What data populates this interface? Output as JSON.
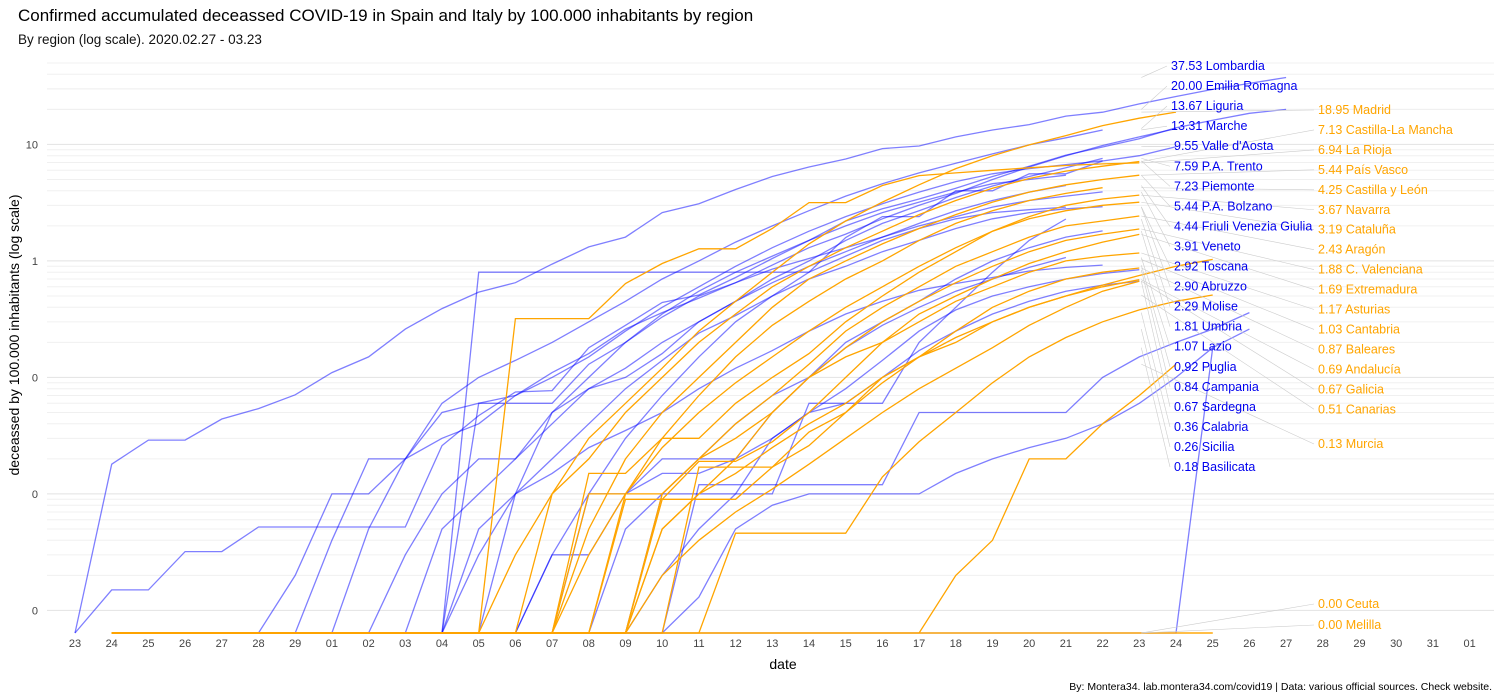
{
  "chart_data": {
    "type": "line",
    "title": "Confirmed accumulated deceassed COVID-19 in Spain and Italy by 100.000 inhabitants by region",
    "subtitle": "By region (log scale). 2020.02.27 - 03.23",
    "xlabel": "date",
    "ylabel": "deceassed by 100.000 inhabitants (log scale)",
    "caption": "By: Montera34. lab.montera34.com/covid19 | Data: various official sources. Check website.",
    "y_scale": "log",
    "ylim": [
      0.00064,
      50
    ],
    "y_ticks": [
      {
        "value": 0.001,
        "label": "0"
      },
      {
        "value": 0.01,
        "label": "0"
      },
      {
        "value": 0.1,
        "label": "0"
      },
      {
        "value": 1,
        "label": "1"
      },
      {
        "value": 10,
        "label": "10"
      }
    ],
    "x_ticks": [
      "23",
      "24",
      "25",
      "26",
      "27",
      "28",
      "29",
      "01",
      "02",
      "03",
      "04",
      "05",
      "06",
      "07",
      "08",
      "09",
      "10",
      "11",
      "12",
      "13",
      "14",
      "15",
      "16",
      "17",
      "18",
      "19",
      "20",
      "21",
      "22",
      "23",
      "24",
      "25",
      "26",
      "27",
      "28",
      "29",
      "30",
      "31",
      "01"
    ],
    "grid": true,
    "legend": "none",
    "colors": {
      "italy": "#0000ff",
      "spain": "#ffa500"
    },
    "series": [
      {
        "name": "Lombardia",
        "country": "italy",
        "label": "37.53 Lombardia",
        "start": 1,
        "values": [
          0.018,
          0.029,
          0.029,
          0.044,
          0.054,
          0.071,
          0.11,
          0.15,
          0.26,
          0.39,
          0.54,
          0.65,
          0.94,
          1.32,
          1.6,
          2.6,
          3.1,
          4.1,
          5.3,
          6.4,
          7.5,
          9.2,
          9.7,
          11.6,
          13.3,
          14.8,
          17.5,
          18.9,
          22.3,
          25.8,
          29.7,
          33.4,
          37.53
        ]
      },
      {
        "name": "Emilia Romagna",
        "country": "italy",
        "label": "20.00 Emilia Romagna",
        "start": 1,
        "values": [
          0.0015,
          0.0015,
          0.0032,
          0.0032,
          0.0052,
          0.0052,
          0.0052,
          0.0052,
          0.0052,
          0.026,
          0.047,
          0.075,
          0.077,
          0.18,
          0.28,
          0.44,
          0.51,
          0.72,
          1.05,
          1.5,
          2.2,
          2.8,
          3.4,
          4.2,
          5.3,
          6.5,
          8.1,
          9.5,
          11.2,
          13.9,
          16.1,
          18.5,
          20.0
        ]
      },
      {
        "name": "Liguria",
        "country": "italy",
        "label": "13.67 Liguria",
        "series_index": 2
      },
      {
        "name": "Marche",
        "country": "italy",
        "label": "13.31 Marche",
        "series_index": 3
      },
      {
        "name": "Valle d'Aosta",
        "country": "italy",
        "label": "9.55 Valle d'Aosta",
        "series_index": 4
      },
      {
        "name": "P.A. Trento",
        "country": "italy",
        "label": "7.59 P.A. Trento",
        "series_index": 5
      },
      {
        "name": "Piemonte",
        "country": "italy",
        "label": "7.23 Piemonte",
        "series_index": 6
      },
      {
        "name": "P.A. Bolzano",
        "country": "italy",
        "label": "5.44 P.A. Bolzano",
        "series_index": 7
      },
      {
        "name": "Friuli Venezia Giulia",
        "country": "italy",
        "label": "4.44 Friuli Venezia Giulia",
        "series_index": 8
      },
      {
        "name": "Veneto",
        "country": "italy",
        "label": "3.91 Veneto",
        "series_index": 9
      },
      {
        "name": "Toscana",
        "country": "italy",
        "label": "2.92 Toscana",
        "series_index": 10
      },
      {
        "name": "Abruzzo",
        "country": "italy",
        "label": "2.90 Abruzzo",
        "series_index": 11
      },
      {
        "name": "Molise",
        "country": "italy",
        "label": "2.29 Molise",
        "series_index": 12
      },
      {
        "name": "Umbria",
        "country": "italy",
        "label": "1.81 Umbria",
        "series_index": 13
      },
      {
        "name": "Lazio",
        "country": "italy",
        "label": "1.07 Lazio",
        "series_index": 14
      },
      {
        "name": "Puglia",
        "country": "italy",
        "label": "0.92 Puglia",
        "series_index": 15
      },
      {
        "name": "Campania",
        "country": "italy",
        "label": "0.84 Campania",
        "series_index": 16
      },
      {
        "name": "Sardegna",
        "country": "italy",
        "label": "0.67 Sardegna",
        "series_index": 17
      },
      {
        "name": "Calabria",
        "country": "italy",
        "label": "0.36 Calabria",
        "series_index": 18
      },
      {
        "name": "Sicilia",
        "country": "italy",
        "label": "0.26 Sicilia",
        "series_index": 19
      },
      {
        "name": "Basilicata",
        "country": "italy",
        "label": "0.18 Basilicata",
        "series_index": 20
      },
      {
        "name": "Madrid",
        "country": "spain",
        "label": "18.95 Madrid",
        "series_index": 21
      },
      {
        "name": "Castilla-La Mancha",
        "country": "spain",
        "label": "7.13 Castilla-La Mancha",
        "series_index": 22
      },
      {
        "name": "La Rioja",
        "country": "spain",
        "label": "6.94 La Rioja",
        "series_index": 23
      },
      {
        "name": "País Vasco",
        "country": "spain",
        "label": "5.44 País Vasco",
        "series_index": 24
      },
      {
        "name": "Castilla y León",
        "country": "spain",
        "label": "4.25 Castilla y León",
        "series_index": 25
      },
      {
        "name": "Navarra",
        "country": "spain",
        "label": "3.67 Navarra",
        "series_index": 26
      },
      {
        "name": "Cataluña",
        "country": "spain",
        "label": "3.19 Cataluña",
        "series_index": 27
      },
      {
        "name": "Aragón",
        "country": "spain",
        "label": "2.43 Aragón",
        "series_index": 28
      },
      {
        "name": "C. Valenciana",
        "country": "spain",
        "label": "1.88 C. Valenciana",
        "series_index": 29
      },
      {
        "name": "Extremadura",
        "country": "spain",
        "label": "1.69 Extremadura",
        "series_index": 30
      },
      {
        "name": "Asturias",
        "country": "spain",
        "label": "1.17 Asturias",
        "series_index": 31
      },
      {
        "name": "Cantabria",
        "country": "spain",
        "label": "1.03 Cantabria",
        "series_index": 32
      },
      {
        "name": "Baleares",
        "country": "spain",
        "label": "0.87 Baleares",
        "series_index": 33
      },
      {
        "name": "Andalucía",
        "country": "spain",
        "label": "0.69 Andalucía",
        "series_index": 34
      },
      {
        "name": "Galicia",
        "country": "spain",
        "label": "0.67 Galicia",
        "series_index": 35
      },
      {
        "name": "Canarias",
        "country": "spain",
        "label": "0.51 Canarias",
        "series_index": 36
      },
      {
        "name": "Murcia",
        "country": "spain",
        "label": "0.13 Murcia",
        "series_index": 37
      },
      {
        "name": "Ceuta",
        "country": "spain",
        "label": "0.00 Ceuta",
        "series_index": 38
      },
      {
        "name": "Melilla",
        "country": "spain",
        "label": "0.00 Melilla",
        "series_index": 39
      }
    ],
    "series_values": [
      null,
      null,
      {
        "start": 11,
        "values": [
          0.06,
          0.06,
          0.06,
          0.13,
          0.2,
          0.33,
          0.5,
          0.65,
          0.92,
          1.3,
          1.7,
          2.3,
          3.0,
          3.8,
          5.0,
          6.4,
          8.0,
          9.8,
          11.6,
          13.67
        ]
      },
      {
        "start": 7,
        "values": [
          0.004,
          0.02,
          0.02,
          0.06,
          0.1,
          0.14,
          0.2,
          0.3,
          0.45,
          0.7,
          1.0,
          1.45,
          2.0,
          2.7,
          3.6,
          4.6,
          5.7,
          6.9,
          8.3,
          9.9,
          11.4,
          13.31
        ]
      },
      {
        "start": 11,
        "values": [
          0.8,
          0.8,
          0.8,
          0.8,
          0.8,
          0.8,
          0.8,
          0.8,
          0.8,
          0.8,
          1.59,
          2.4,
          2.4,
          4.0,
          4.0,
          5.6,
          5.6,
          7.2,
          8.0,
          9.55
        ]
      },
      {
        "start": 9,
        "values": [
          0.003,
          0.01,
          0.02,
          0.02,
          0.04,
          0.08,
          0.12,
          0.2,
          0.3,
          0.45,
          0.7,
          1.0,
          1.5,
          2.1,
          2.7,
          3.5,
          4.4,
          5.3,
          6.3,
          7.59
        ]
      },
      {
        "start": 8,
        "values": [
          0.005,
          0.02,
          0.03,
          0.04,
          0.07,
          0.1,
          0.15,
          0.25,
          0.4,
          0.6,
          0.9,
          1.3,
          1.8,
          2.4,
          3.1,
          3.9,
          4.8,
          5.6,
          6.2,
          6.7,
          7.23
        ]
      },
      {
        "start": 12,
        "values": [
          0.01,
          0.05,
          0.1,
          0.2,
          0.35,
          0.55,
          0.8,
          1.1,
          1.5,
          2.0,
          2.6,
          3.2,
          3.9,
          4.6,
          5.0,
          5.44
        ]
      },
      {
        "start": 10,
        "values": [
          0.005,
          0.01,
          0.02,
          0.05,
          0.08,
          0.1,
          0.16,
          0.3,
          0.45,
          0.65,
          0.9,
          1.2,
          1.6,
          2.1,
          2.7,
          3.3,
          3.9,
          4.44
        ]
      },
      {
        "start": 6,
        "values": [
          0.002,
          0.01,
          0.01,
          0.02,
          0.05,
          0.06,
          0.07,
          0.11,
          0.16,
          0.26,
          0.36,
          0.48,
          0.65,
          0.85,
          1.05,
          1.3,
          1.6,
          2.0,
          2.4,
          2.9,
          3.3,
          3.6,
          3.91
        ]
      },
      {
        "start": 11,
        "values": [
          0.003,
          0.01,
          0.02,
          0.04,
          0.08,
          0.14,
          0.24,
          0.34,
          0.5,
          0.7,
          0.9,
          1.2,
          1.5,
          1.9,
          2.3,
          2.6,
          2.8,
          2.92
        ]
      },
      {
        "start": 13,
        "values": [
          0.003,
          0.01,
          0.03,
          0.07,
          0.15,
          0.3,
          0.5,
          0.8,
          1.1,
          1.5,
          1.9,
          2.3,
          2.6,
          2.75,
          2.9
        ]
      },
      {
        "start": 16,
        "values": [
          0.01,
          0.01,
          0.01,
          0.01,
          0.06,
          0.06,
          0.06,
          0.2,
          0.4,
          0.8,
          1.5,
          2.29
        ]
      },
      {
        "start": 13,
        "values": [
          0.003,
          0.003,
          0.01,
          0.02,
          0.02,
          0.02,
          0.05,
          0.1,
          0.2,
          0.3,
          0.45,
          0.7,
          1.0,
          1.3,
          1.6,
          1.81
        ]
      },
      {
        "start": 15,
        "values": [
          0.005,
          0.01,
          0.02,
          0.04,
          0.07,
          0.1,
          0.18,
          0.28,
          0.4,
          0.55,
          0.7,
          0.88,
          1.07
        ]
      },
      {
        "start": 11,
        "values": [
          0.005,
          0.01,
          0.015,
          0.025,
          0.035,
          0.05,
          0.08,
          0.12,
          0.17,
          0.25,
          0.35,
          0.45,
          0.56,
          0.64,
          0.72,
          0.82,
          0.88,
          0.92
        ]
      },
      {
        "start": 16,
        "values": [
          0.002,
          0.005,
          0.01,
          0.03,
          0.05,
          0.08,
          0.14,
          0.25,
          0.38,
          0.5,
          0.6,
          0.7,
          0.78,
          0.84
        ]
      },
      {
        "start": 14,
        "values": [
          0.01,
          0.01,
          0.015,
          0.015,
          0.02,
          0.03,
          0.05,
          0.06,
          0.1,
          0.17,
          0.25,
          0.35,
          0.45,
          0.55,
          0.62,
          0.67
        ]
      },
      {
        "start": 17,
        "values": [
          0.012,
          0.012,
          0.012,
          0.012,
          0.012,
          0.012,
          0.05,
          0.05,
          0.05,
          0.05,
          0.05,
          0.1,
          0.15,
          0.2,
          0.26,
          0.36
        ]
      },
      {
        "start": 17,
        "values": [
          0.0013,
          0.005,
          0.008,
          0.01,
          0.01,
          0.01,
          0.01,
          0.015,
          0.02,
          0.025,
          0.03,
          0.04,
          0.06,
          0.1,
          0.18,
          0.26
        ]
      },
      {
        "start": 31,
        "values": [
          0.18
        ]
      },
      {
        "start": 12,
        "values": [
          0.003,
          0.01,
          0.03,
          0.06,
          0.12,
          0.25,
          0.45,
          0.8,
          1.4,
          2.2,
          3.2,
          4.5,
          6.2,
          8.0,
          9.9,
          11.9,
          14.5,
          16.8,
          18.95
        ]
      },
      {
        "start": 13,
        "values": [
          0.01,
          0.02,
          0.05,
          0.1,
          0.2,
          0.35,
          0.6,
          0.9,
          1.3,
          1.8,
          2.5,
          3.3,
          4.2,
          5.1,
          5.9,
          6.5,
          7.13
        ]
      },
      {
        "start": 12,
        "values": [
          0.32,
          0.32,
          0.32,
          0.64,
          0.95,
          1.27,
          1.27,
          1.9,
          3.17,
          3.17,
          4.44,
          5.4,
          5.7,
          6.0,
          6.3,
          6.6,
          6.8,
          6.94
        ]
      },
      {
        "start": 14,
        "values": [
          0.005,
          0.02,
          0.05,
          0.1,
          0.2,
          0.4,
          0.7,
          1.0,
          1.4,
          1.9,
          2.5,
          3.2,
          3.9,
          4.5,
          5.0,
          5.44
        ]
      },
      {
        "start": 15,
        "values": [
          0.01,
          0.03,
          0.07,
          0.15,
          0.28,
          0.45,
          0.7,
          1.0,
          1.5,
          2.1,
          2.7,
          3.3,
          3.8,
          4.25
        ]
      },
      {
        "start": 14,
        "values": [
          0.015,
          0.015,
          0.03,
          0.03,
          0.06,
          0.1,
          0.16,
          0.3,
          0.5,
          0.8,
          1.2,
          1.8,
          2.4,
          3.0,
          3.4,
          3.67
        ]
      },
      {
        "start": 14,
        "values": [
          0.003,
          0.01,
          0.025,
          0.05,
          0.09,
          0.15,
          0.25,
          0.4,
          0.6,
          0.9,
          1.3,
          1.8,
          2.3,
          2.7,
          3.0,
          3.19
        ]
      },
      {
        "start": 16,
        "values": [
          0.01,
          0.02,
          0.04,
          0.07,
          0.13,
          0.25,
          0.4,
          0.6,
          0.9,
          1.2,
          1.6,
          2.0,
          2.2,
          2.43
        ]
      },
      {
        "start": 16,
        "values": [
          0.005,
          0.01,
          0.02,
          0.05,
          0.1,
          0.18,
          0.3,
          0.45,
          0.65,
          0.9,
          1.2,
          1.5,
          1.7,
          1.88
        ]
      },
      {
        "start": 15,
        "values": [
          0.009,
          0.009,
          0.019,
          0.019,
          0.028,
          0.05,
          0.1,
          0.2,
          0.35,
          0.5,
          0.7,
          0.95,
          1.2,
          1.45,
          1.69
        ]
      },
      {
        "start": 14,
        "values": [
          0.01,
          0.01,
          0.01,
          0.02,
          0.03,
          0.05,
          0.1,
          0.15,
          0.2,
          0.3,
          0.45,
          0.6,
          0.8,
          1.0,
          1.1,
          1.17
        ]
      },
      {
        "start": 17,
        "values": [
          0.017,
          0.017,
          0.017,
          0.034,
          0.05,
          0.1,
          0.15,
          0.2,
          0.3,
          0.4,
          0.5,
          0.62,
          0.75,
          0.9,
          1.03
        ]
      },
      {
        "start": 16,
        "values": [
          0.009,
          0.009,
          0.009,
          0.017,
          0.026,
          0.05,
          0.09,
          0.15,
          0.25,
          0.4,
          0.55,
          0.7,
          0.8,
          0.87
        ]
      },
      {
        "start": 16,
        "values": [
          0.005,
          0.01,
          0.015,
          0.025,
          0.04,
          0.06,
          0.1,
          0.15,
          0.22,
          0.3,
          0.4,
          0.5,
          0.6,
          0.69
        ]
      },
      {
        "start": 16,
        "values": [
          0.002,
          0.004,
          0.007,
          0.011,
          0.018,
          0.03,
          0.05,
          0.08,
          0.12,
          0.18,
          0.28,
          0.4,
          0.55,
          0.67
        ]
      },
      {
        "start": 18,
        "values": [
          0.0046,
          0.0046,
          0.0046,
          0.0046,
          0.014,
          0.028,
          0.05,
          0.09,
          0.15,
          0.22,
          0.3,
          0.38,
          0.45,
          0.51
        ]
      },
      {
        "start": 24,
        "values": [
          0.002,
          0.004,
          0.02,
          0.02,
          0.04,
          0.07,
          0.13
        ]
      },
      {
        "start": 31,
        "values": [
          0.0006
        ]
      },
      {
        "start": 31,
        "values": [
          0.0006
        ]
      }
    ]
  }
}
